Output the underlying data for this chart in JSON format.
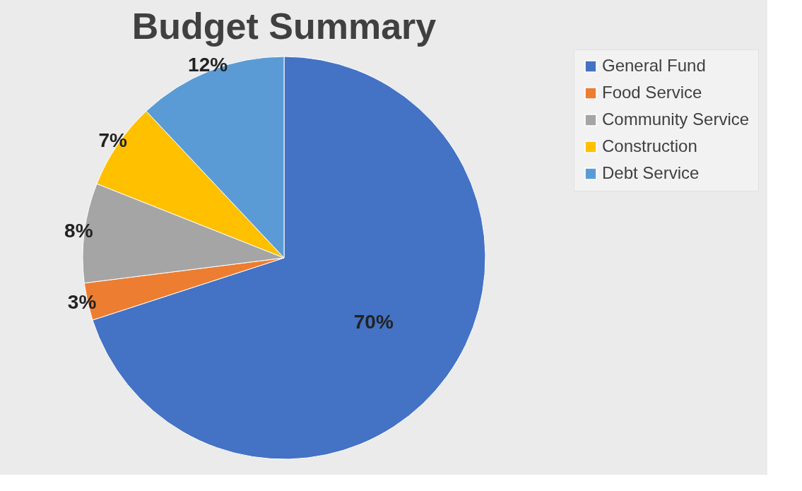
{
  "chart_data": {
    "type": "pie",
    "title": "Budget Summary",
    "categories": [
      "General Fund",
      "Food Service",
      "Community Service",
      "Construction",
      "Debt Service"
    ],
    "values": [
      70,
      3,
      8,
      7,
      12
    ],
    "colors": [
      "#4472c4",
      "#ed7d31",
      "#a5a5a5",
      "#ffc000",
      "#5b9bd5"
    ],
    "value_labels": [
      "70%",
      "3%",
      "8%",
      "7%",
      "12%"
    ],
    "legend": "right"
  }
}
